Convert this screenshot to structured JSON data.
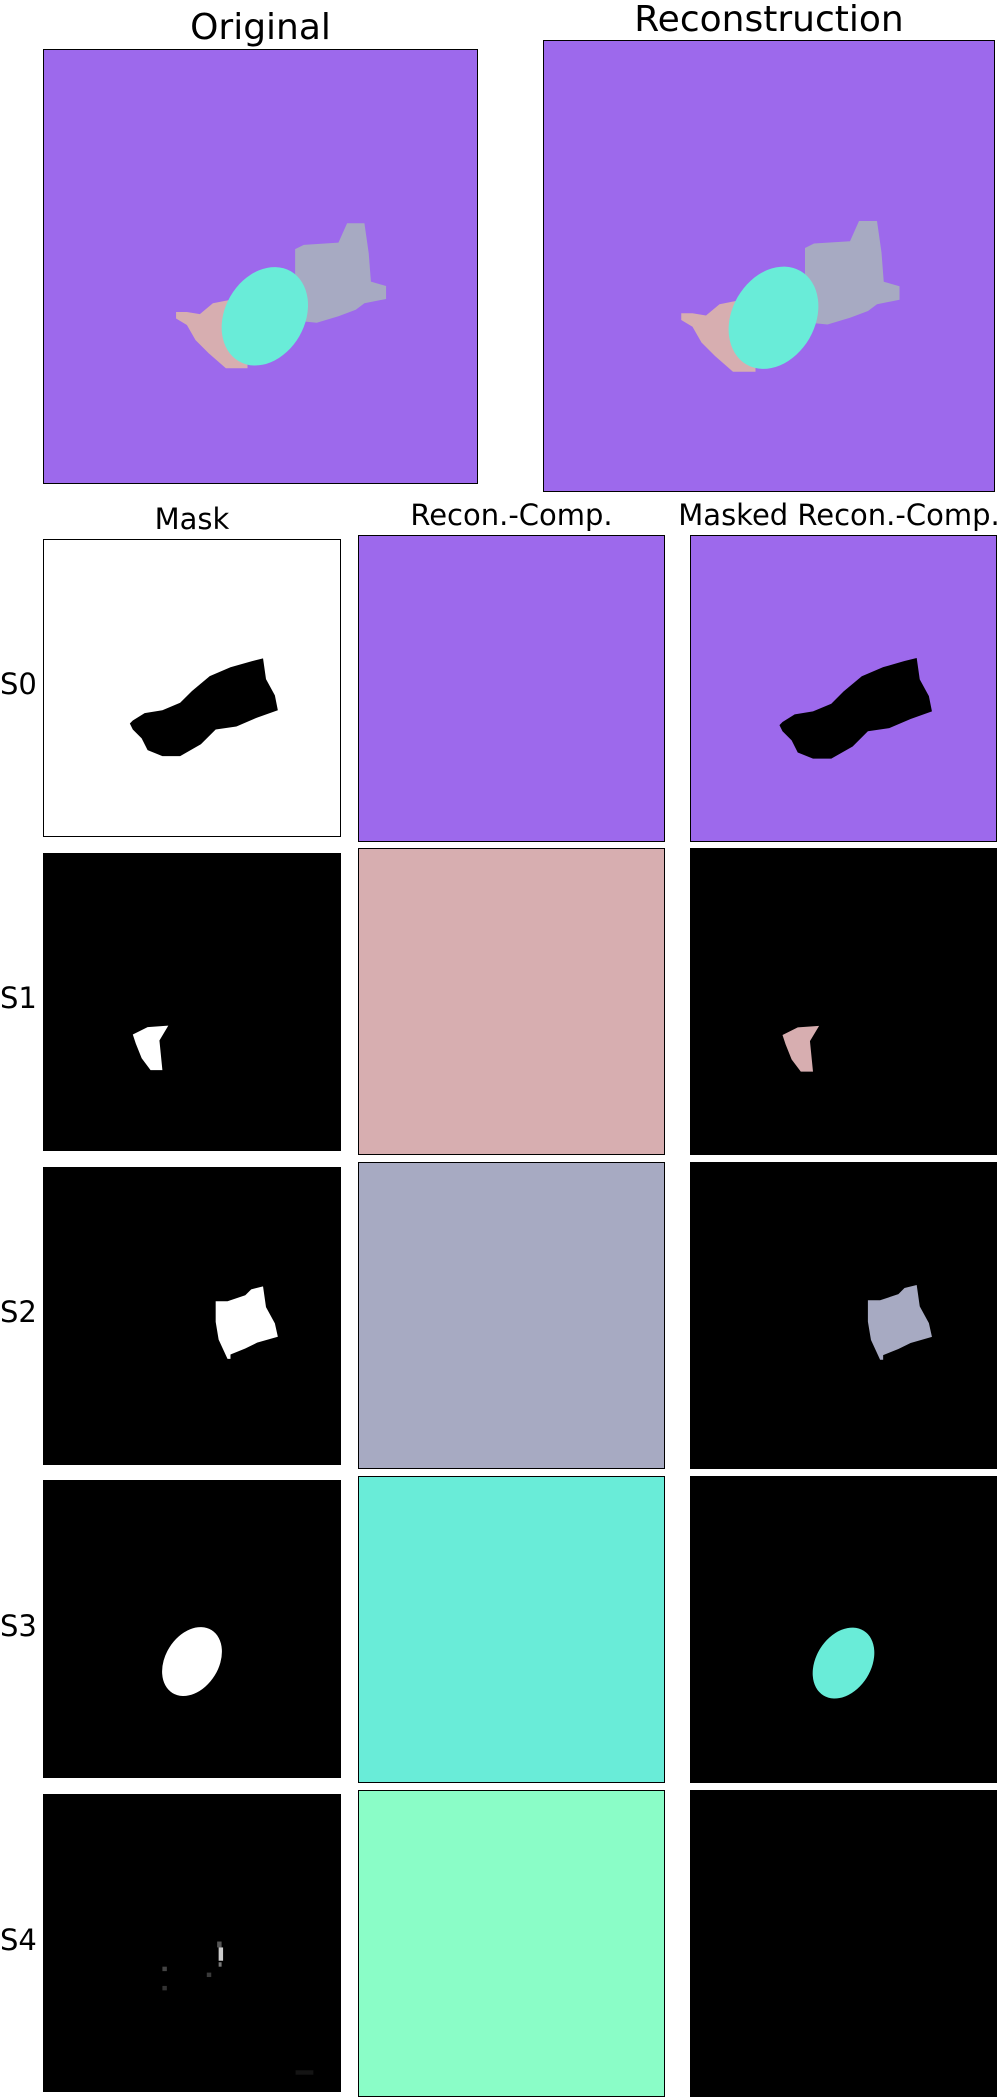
{
  "titles": {
    "original": "Original",
    "reconstruction": "Reconstruction",
    "mask": "Mask",
    "recon_comp": "Recon.-Comp.",
    "masked_recon_comp": "Masked Recon.-Comp."
  },
  "colors": {
    "background": "#9d69ec",
    "object_salmon": "#d7aeb0",
    "object_gray": "#a7aac2",
    "object_cyan": "#69ecd8",
    "slot4_mint": "#8afdc7",
    "mask_black": "#000000",
    "mask_white": "#ffffff"
  },
  "slots": [
    {
      "label": "S0",
      "component_color": "#9d69ec"
    },
    {
      "label": "S1",
      "component_color": "#d7aeb0"
    },
    {
      "label": "S2",
      "component_color": "#a7aac2"
    },
    {
      "label": "S3",
      "component_color": "#69ecd8"
    },
    {
      "label": "S4",
      "component_color": "#8afdc7"
    }
  ]
}
